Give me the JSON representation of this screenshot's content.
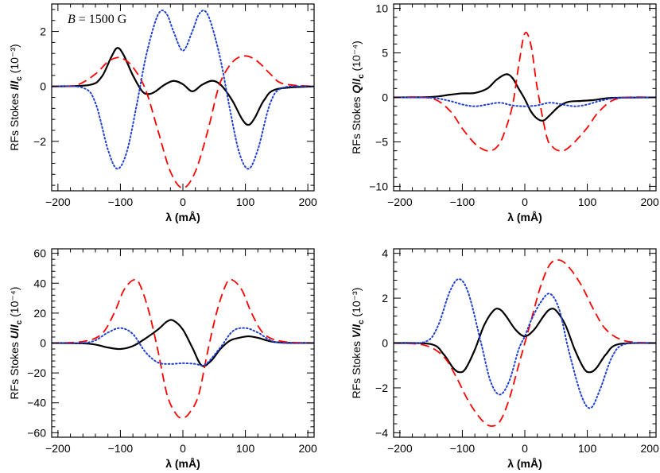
{
  "chart_data": [
    {
      "type": "line",
      "panel": "top-left",
      "annotation": {
        "italic": "B",
        "text": " = 1500 G"
      },
      "ylabel": {
        "prefix": "RFs Stokes ",
        "quantity": "I",
        "unit": "(10⁻³)"
      },
      "xlabel": "λ (mÅ)",
      "xlim": [
        -210,
        210
      ],
      "ylim": [
        -3.8,
        3.0
      ],
      "xticks": [
        -200,
        -100,
        0,
        100,
        200
      ],
      "yticks": [
        -2,
        0,
        2
      ],
      "series": [
        {
          "name": "solid",
          "color": "#000000",
          "dash": "solid",
          "x": [
            -210,
            -150,
            -130,
            -115,
            -105,
            -95,
            -80,
            -65,
            -55,
            -45,
            -30,
            -15,
            0,
            15,
            30,
            45,
            55,
            65,
            80,
            95,
            105,
            115,
            130,
            150,
            210
          ],
          "y": [
            0,
            0.05,
            0.35,
            1.05,
            1.4,
            1.15,
            0.4,
            -0.18,
            -0.28,
            -0.2,
            0.05,
            0.2,
            0.08,
            -0.18,
            0.05,
            0.2,
            0.15,
            -0.05,
            -0.55,
            -1.2,
            -1.4,
            -1.15,
            -0.5,
            -0.1,
            0
          ]
        },
        {
          "name": "dashed",
          "color": "#ff0000",
          "dash": "dashed",
          "x": [
            -210,
            -170,
            -140,
            -120,
            -105,
            -95,
            -80,
            -60,
            -40,
            -20,
            0,
            20,
            40,
            55,
            65,
            80,
            95,
            110,
            125,
            140,
            160,
            210
          ],
          "y": [
            0,
            0.05,
            0.45,
            0.9,
            1.05,
            1.0,
            0.7,
            -0.1,
            -1.6,
            -3.1,
            -3.7,
            -3.1,
            -1.6,
            -0.2,
            0.4,
            0.9,
            1.1,
            1.05,
            0.8,
            0.45,
            0.1,
            0
          ]
        },
        {
          "name": "dotted",
          "color": "#1f3fd6",
          "dash": "dotted",
          "x": [
            -210,
            -160,
            -140,
            -120,
            -105,
            -90,
            -75,
            -60,
            -45,
            -35,
            -25,
            -15,
            0,
            15,
            25,
            35,
            45,
            60,
            75,
            90,
            105,
            120,
            140,
            160,
            210
          ],
          "y": [
            0,
            -0.05,
            -0.6,
            -2.3,
            -3.0,
            -2.4,
            -0.8,
            1.0,
            2.3,
            2.75,
            2.6,
            2.0,
            1.3,
            2.0,
            2.6,
            2.75,
            2.3,
            1.0,
            -0.8,
            -2.4,
            -3.0,
            -2.3,
            -0.6,
            -0.05,
            0
          ]
        }
      ]
    },
    {
      "type": "line",
      "panel": "top-right",
      "ylabel": {
        "prefix": "RFs Stokes ",
        "quantity": "Q",
        "unit": "(10⁻⁴)"
      },
      "xlabel": "λ (mÅ)",
      "xlim": [
        -210,
        210
      ],
      "ylim": [
        -10.5,
        10.5
      ],
      "xticks": [
        -200,
        -100,
        0,
        100,
        200
      ],
      "yticks": [
        -10,
        -5,
        0,
        5,
        10
      ],
      "series": [
        {
          "name": "solid",
          "color": "#000000",
          "dash": "solid",
          "x": [
            -210,
            -150,
            -120,
            -100,
            -80,
            -60,
            -45,
            -30,
            -20,
            -10,
            0,
            10,
            20,
            30,
            40,
            55,
            70,
            90,
            110,
            140,
            210
          ],
          "y": [
            0,
            0.05,
            0.3,
            0.45,
            0.5,
            1.0,
            2.0,
            2.6,
            2.2,
            1.0,
            -0.2,
            -1.6,
            -2.4,
            -2.6,
            -2.0,
            -1.0,
            -0.5,
            -0.4,
            -0.3,
            -0.05,
            0
          ]
        },
        {
          "name": "dashed",
          "color": "#ff0000",
          "dash": "dashed",
          "x": [
            -210,
            -150,
            -120,
            -100,
            -80,
            -65,
            -55,
            -45,
            -35,
            -20,
            -10,
            0,
            10,
            20,
            35,
            45,
            55,
            65,
            80,
            100,
            120,
            150,
            210
          ],
          "y": [
            0,
            -0.1,
            -1.5,
            -3.5,
            -5.2,
            -5.9,
            -6.0,
            -5.6,
            -4.4,
            -1.0,
            3.5,
            7.2,
            5.8,
            1.0,
            -4.4,
            -5.6,
            -6.0,
            -5.9,
            -5.0,
            -3.4,
            -1.5,
            -0.1,
            0
          ]
        },
        {
          "name": "dotted",
          "color": "#1f3fd6",
          "dash": "dotted",
          "x": [
            -210,
            -150,
            -120,
            -100,
            -80,
            -60,
            -40,
            -20,
            0,
            20,
            40,
            60,
            80,
            100,
            120,
            150,
            210
          ],
          "y": [
            0,
            -0.05,
            -0.4,
            -0.8,
            -1.0,
            -0.8,
            -0.6,
            -0.9,
            -1.0,
            -0.9,
            -0.6,
            -0.8,
            -1.0,
            -0.8,
            -0.4,
            -0.05,
            0
          ]
        }
      ]
    },
    {
      "type": "line",
      "panel": "bottom-left",
      "ylabel": {
        "prefix": "RFs Stokes ",
        "quantity": "U",
        "unit": "(10⁻⁴)"
      },
      "xlabel": "λ (mÅ)",
      "xlim": [
        -210,
        210
      ],
      "ylim": [
        -63,
        63
      ],
      "xticks": [
        -200,
        -100,
        0,
        100,
        200
      ],
      "yticks": [
        -60,
        -40,
        -20,
        0,
        20,
        40,
        60
      ],
      "series": [
        {
          "name": "solid",
          "color": "#000000",
          "dash": "solid",
          "x": [
            -210,
            -150,
            -120,
            -100,
            -80,
            -60,
            -40,
            -25,
            -15,
            0,
            15,
            30,
            45,
            60,
            75,
            90,
            105,
            120,
            150,
            210
          ],
          "y": [
            0,
            -0.5,
            -3.0,
            -4.0,
            -2.0,
            3.0,
            9.0,
            14.5,
            15.0,
            9.0,
            -3.0,
            -15.0,
            -12.0,
            -4.0,
            1.5,
            3.5,
            4.5,
            3.5,
            0.5,
            0
          ]
        },
        {
          "name": "dashed",
          "color": "#ff0000",
          "dash": "dashed",
          "x": [
            -210,
            -160,
            -130,
            -110,
            -95,
            -80,
            -70,
            -55,
            -40,
            -25,
            -10,
            0,
            10,
            25,
            40,
            55,
            70,
            80,
            95,
            110,
            130,
            160,
            210
          ],
          "y": [
            0,
            1.0,
            6.0,
            20.0,
            35.0,
            42.0,
            40.0,
            22.0,
            -5.0,
            -35.0,
            -48.0,
            -50.0,
            -47.0,
            -35.0,
            -5.0,
            22.0,
            40.0,
            42.0,
            35.0,
            20.0,
            6.0,
            1.0,
            0
          ]
        },
        {
          "name": "dotted",
          "color": "#1f3fd6",
          "dash": "dotted",
          "x": [
            -210,
            -150,
            -120,
            -100,
            -80,
            -60,
            -40,
            -20,
            0,
            20,
            30,
            40,
            60,
            80,
            100,
            120,
            150,
            210
          ],
          "y": [
            0,
            0.5,
            7.0,
            10.0,
            6.0,
            -6.0,
            -13.0,
            -14.0,
            -13.5,
            -14.0,
            -15.0,
            -13.0,
            -3.0,
            8.0,
            10.0,
            7.0,
            0.5,
            0
          ]
        }
      ]
    },
    {
      "type": "line",
      "panel": "bottom-right",
      "ylabel": {
        "prefix": "RFs Stokes ",
        "quantity": "V",
        "unit": "(10⁻³)"
      },
      "xlabel": "λ (mÅ)",
      "xlim": [
        -210,
        210
      ],
      "ylim": [
        -4.2,
        4.2
      ],
      "xticks": [
        -200,
        -100,
        0,
        100,
        200
      ],
      "yticks": [
        -4,
        -2,
        0,
        2,
        4
      ],
      "series": [
        {
          "name": "solid",
          "color": "#000000",
          "dash": "solid",
          "x": [
            -210,
            -150,
            -130,
            -115,
            -105,
            -95,
            -80,
            -65,
            -50,
            -40,
            -30,
            -15,
            0,
            15,
            30,
            40,
            50,
            65,
            80,
            95,
            105,
            115,
            130,
            150,
            210
          ],
          "y": [
            0,
            -0.05,
            -0.5,
            -1.1,
            -1.3,
            -1.15,
            -0.3,
            0.8,
            1.45,
            1.5,
            1.2,
            0.6,
            0.3,
            0.6,
            1.2,
            1.5,
            1.45,
            0.8,
            -0.3,
            -1.15,
            -1.3,
            -1.1,
            -0.5,
            -0.05,
            0
          ]
        },
        {
          "name": "dashed",
          "color": "#ff0000",
          "dash": "dashed",
          "x": [
            -210,
            -160,
            -130,
            -110,
            -90,
            -70,
            -55,
            -40,
            -25,
            -10,
            0,
            10,
            25,
            40,
            55,
            70,
            90,
            110,
            130,
            160,
            210
          ],
          "y": [
            0,
            -0.1,
            -0.6,
            -1.5,
            -2.6,
            -3.4,
            -3.7,
            -3.5,
            -2.5,
            -1.0,
            0,
            1.0,
            2.5,
            3.5,
            3.7,
            3.4,
            2.6,
            1.5,
            0.6,
            0.1,
            0
          ]
        },
        {
          "name": "dotted",
          "color": "#1f3fd6",
          "dash": "dotted",
          "x": [
            -210,
            -160,
            -140,
            -120,
            -105,
            -90,
            -70,
            -55,
            -40,
            -25,
            -10,
            0,
            10,
            25,
            40,
            55,
            70,
            90,
            105,
            120,
            140,
            160,
            210
          ],
          "y": [
            0,
            0.05,
            0.7,
            2.3,
            2.85,
            2.2,
            0.0,
            -1.7,
            -2.3,
            -1.7,
            -0.3,
            0.3,
            1.0,
            1.8,
            2.2,
            1.5,
            -0.3,
            -2.3,
            -2.9,
            -2.1,
            -0.6,
            -0.05,
            0
          ]
        }
      ]
    }
  ]
}
